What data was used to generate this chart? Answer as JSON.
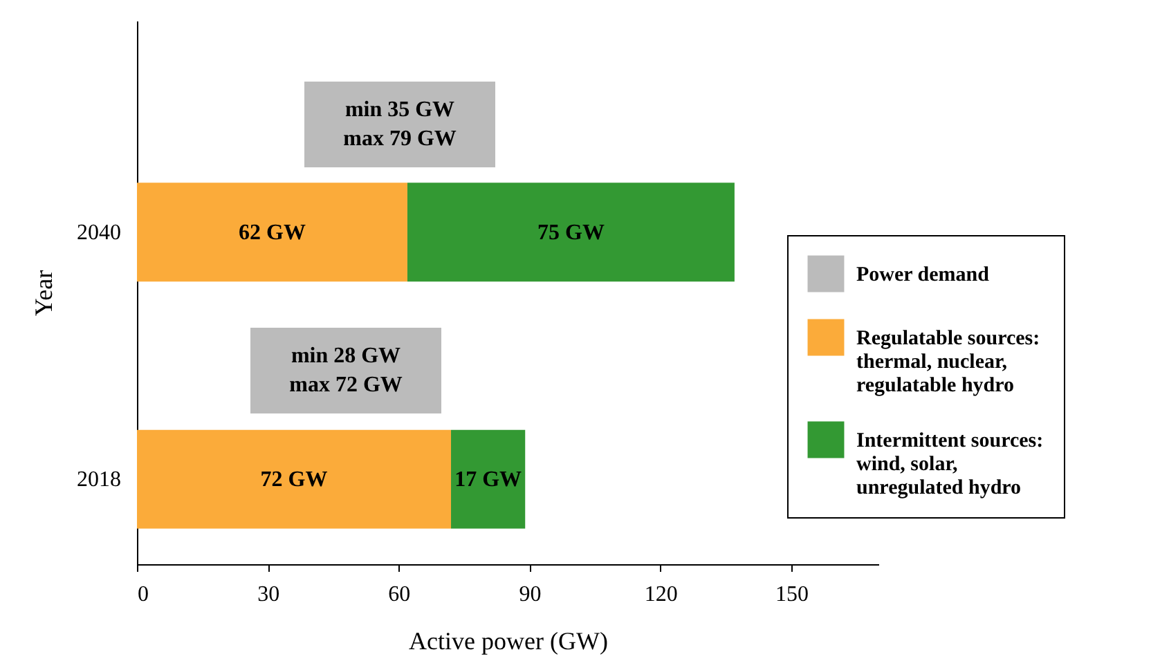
{
  "chart_data": {
    "type": "bar",
    "orientation": "horizontal",
    "stacked": true,
    "xlabel": "Active power (GW)",
    "ylabel": "Year",
    "categories": [
      "2040",
      "2018"
    ],
    "series": [
      {
        "name": "Power demand",
        "color": "#bbbbbb",
        "values": [
          null,
          null
        ]
      },
      {
        "name": "Regulatable sources:\nthermal, nuclear,\nregulatable hydro",
        "color": "#fbab3a",
        "values": [
          62,
          72
        ],
        "value_labels": [
          "62 GW",
          "72 GW"
        ]
      },
      {
        "name": "Intermittent sources:\nwind, solar,\nunregulated hydro",
        "color": "#339933",
        "values": [
          75,
          17
        ],
        "value_labels": [
          "75 GW",
          "17 GW"
        ]
      }
    ],
    "annotations": [
      "min 35 GW\nmax 79 GW",
      "min 28 GW\nmax 72 GW"
    ],
    "xlim": [
      0,
      170
    ],
    "xticks": [
      0,
      30,
      60,
      90,
      120,
      150
    ],
    "grid": false,
    "legend": "right"
  }
}
